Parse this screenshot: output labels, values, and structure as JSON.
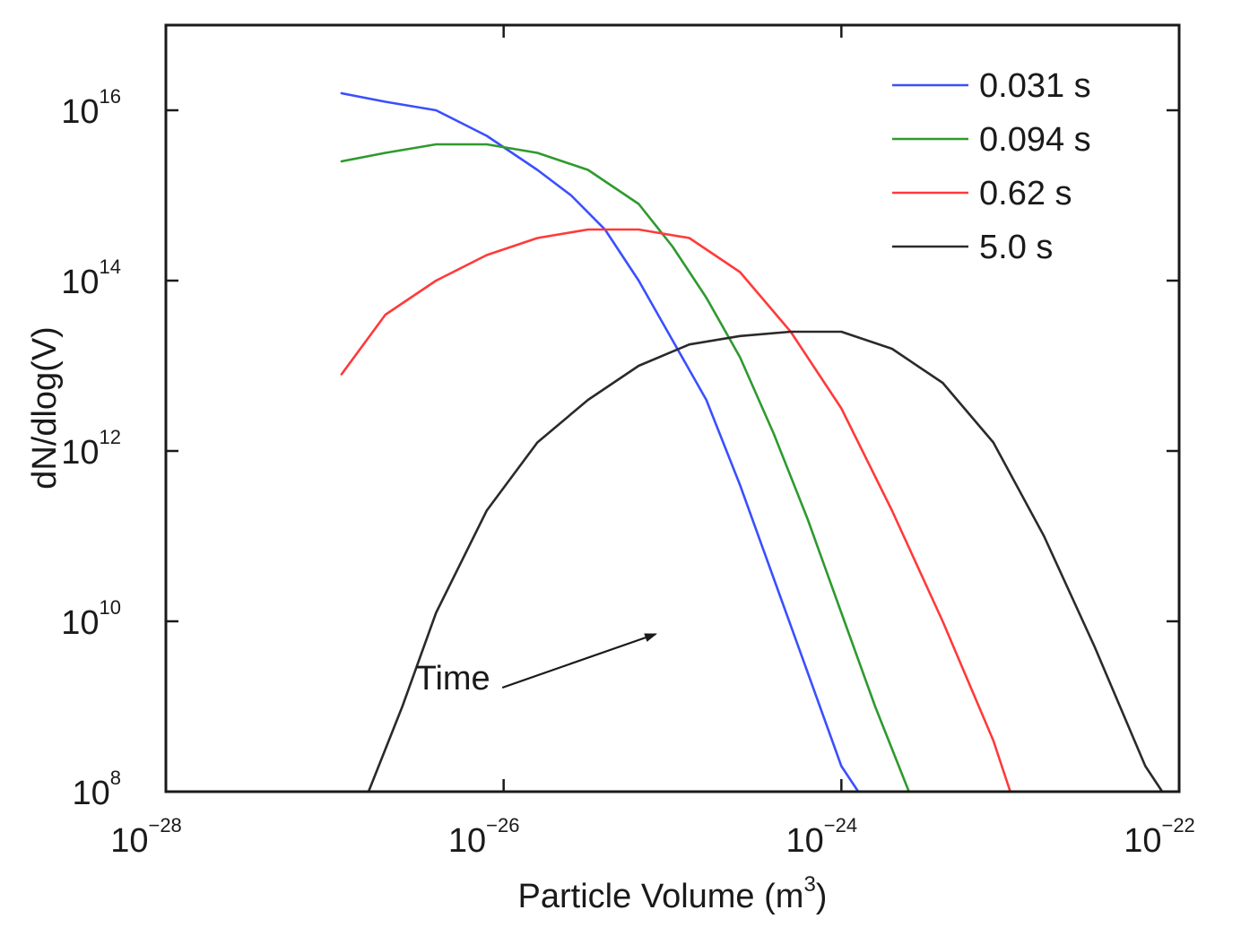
{
  "chart_data": {
    "type": "line",
    "title": "",
    "xlabel": "Particle Volume (m",
    "xlabel_superscript": "3",
    "xlabel_suffix": ")",
    "ylabel": "dN/dlog(V)",
    "x_scale": "log",
    "y_scale": "log",
    "xlim_exponent": [
      -28,
      -22
    ],
    "ylim_exponent": [
      8,
      17
    ],
    "x_ticks": [
      {
        "base": "10",
        "exp": "−28",
        "value_exp": -28
      },
      {
        "base": "10",
        "exp": "−26",
        "value_exp": -26
      },
      {
        "base": "10",
        "exp": "−24",
        "value_exp": -24
      },
      {
        "base": "10",
        "exp": "−22",
        "value_exp": -22
      }
    ],
    "y_ticks": [
      {
        "base": "10",
        "exp": "8",
        "value_exp": 8
      },
      {
        "base": "10",
        "exp": "10",
        "value_exp": 10
      },
      {
        "base": "10",
        "exp": "12",
        "value_exp": 12
      },
      {
        "base": "10",
        "exp": "14",
        "value_exp": 14
      },
      {
        "base": "10",
        "exp": "16",
        "value_exp": 16
      }
    ],
    "grid": false,
    "legend_position": "top-right",
    "series": [
      {
        "name": "0.031 s",
        "color": "#3a4fff",
        "points": [
          [
            -26.96,
            16.2
          ],
          [
            -26.7,
            16.1
          ],
          [
            -26.4,
            16.0
          ],
          [
            -26.1,
            15.7
          ],
          [
            -25.8,
            15.3
          ],
          [
            -25.6,
            15.0
          ],
          [
            -25.4,
            14.6
          ],
          [
            -25.2,
            14.0
          ],
          [
            -25.0,
            13.3
          ],
          [
            -24.8,
            12.6
          ],
          [
            -24.6,
            11.6
          ],
          [
            -24.4,
            10.5
          ],
          [
            -24.2,
            9.4
          ],
          [
            -24.0,
            8.3
          ],
          [
            -23.9,
            8.0
          ]
        ]
      },
      {
        "name": "0.094 s",
        "color": "#2e9a2e",
        "points": [
          [
            -26.96,
            15.4
          ],
          [
            -26.7,
            15.5
          ],
          [
            -26.4,
            15.6
          ],
          [
            -26.1,
            15.6
          ],
          [
            -25.8,
            15.5
          ],
          [
            -25.5,
            15.3
          ],
          [
            -25.2,
            14.9
          ],
          [
            -25.0,
            14.4
          ],
          [
            -24.8,
            13.8
          ],
          [
            -24.6,
            13.1
          ],
          [
            -24.4,
            12.2
          ],
          [
            -24.2,
            11.2
          ],
          [
            -24.0,
            10.1
          ],
          [
            -23.8,
            9.0
          ],
          [
            -23.6,
            8.0
          ]
        ]
      },
      {
        "name": "0.62 s",
        "color": "#ff3a3a",
        "points": [
          [
            -26.96,
            12.9
          ],
          [
            -26.7,
            13.6
          ],
          [
            -26.4,
            14.0
          ],
          [
            -26.1,
            14.3
          ],
          [
            -25.8,
            14.5
          ],
          [
            -25.5,
            14.6
          ],
          [
            -25.2,
            14.6
          ],
          [
            -24.9,
            14.5
          ],
          [
            -24.6,
            14.1
          ],
          [
            -24.3,
            13.4
          ],
          [
            -24.0,
            12.5
          ],
          [
            -23.7,
            11.3
          ],
          [
            -23.4,
            10.0
          ],
          [
            -23.1,
            8.6
          ],
          [
            -23.0,
            8.0
          ]
        ]
      },
      {
        "name": "5.0 s",
        "color": "#2a2a2a",
        "points": [
          [
            -26.8,
            8.0
          ],
          [
            -26.6,
            9.0
          ],
          [
            -26.4,
            10.1
          ],
          [
            -26.1,
            11.3
          ],
          [
            -25.8,
            12.1
          ],
          [
            -25.5,
            12.6
          ],
          [
            -25.2,
            13.0
          ],
          [
            -24.9,
            13.25
          ],
          [
            -24.6,
            13.35
          ],
          [
            -24.3,
            13.4
          ],
          [
            -24.0,
            13.4
          ],
          [
            -23.7,
            13.2
          ],
          [
            -23.4,
            12.8
          ],
          [
            -23.1,
            12.1
          ],
          [
            -22.8,
            11.0
          ],
          [
            -22.5,
            9.7
          ],
          [
            -22.2,
            8.3
          ],
          [
            -22.1,
            8.0
          ]
        ]
      }
    ],
    "annotations": [
      {
        "text": "Time",
        "x_exp": -26.3,
        "y_exp": 9.2,
        "arrow_to_x_exp": -25.1,
        "arrow_to_y_exp": 9.85
      }
    ]
  }
}
